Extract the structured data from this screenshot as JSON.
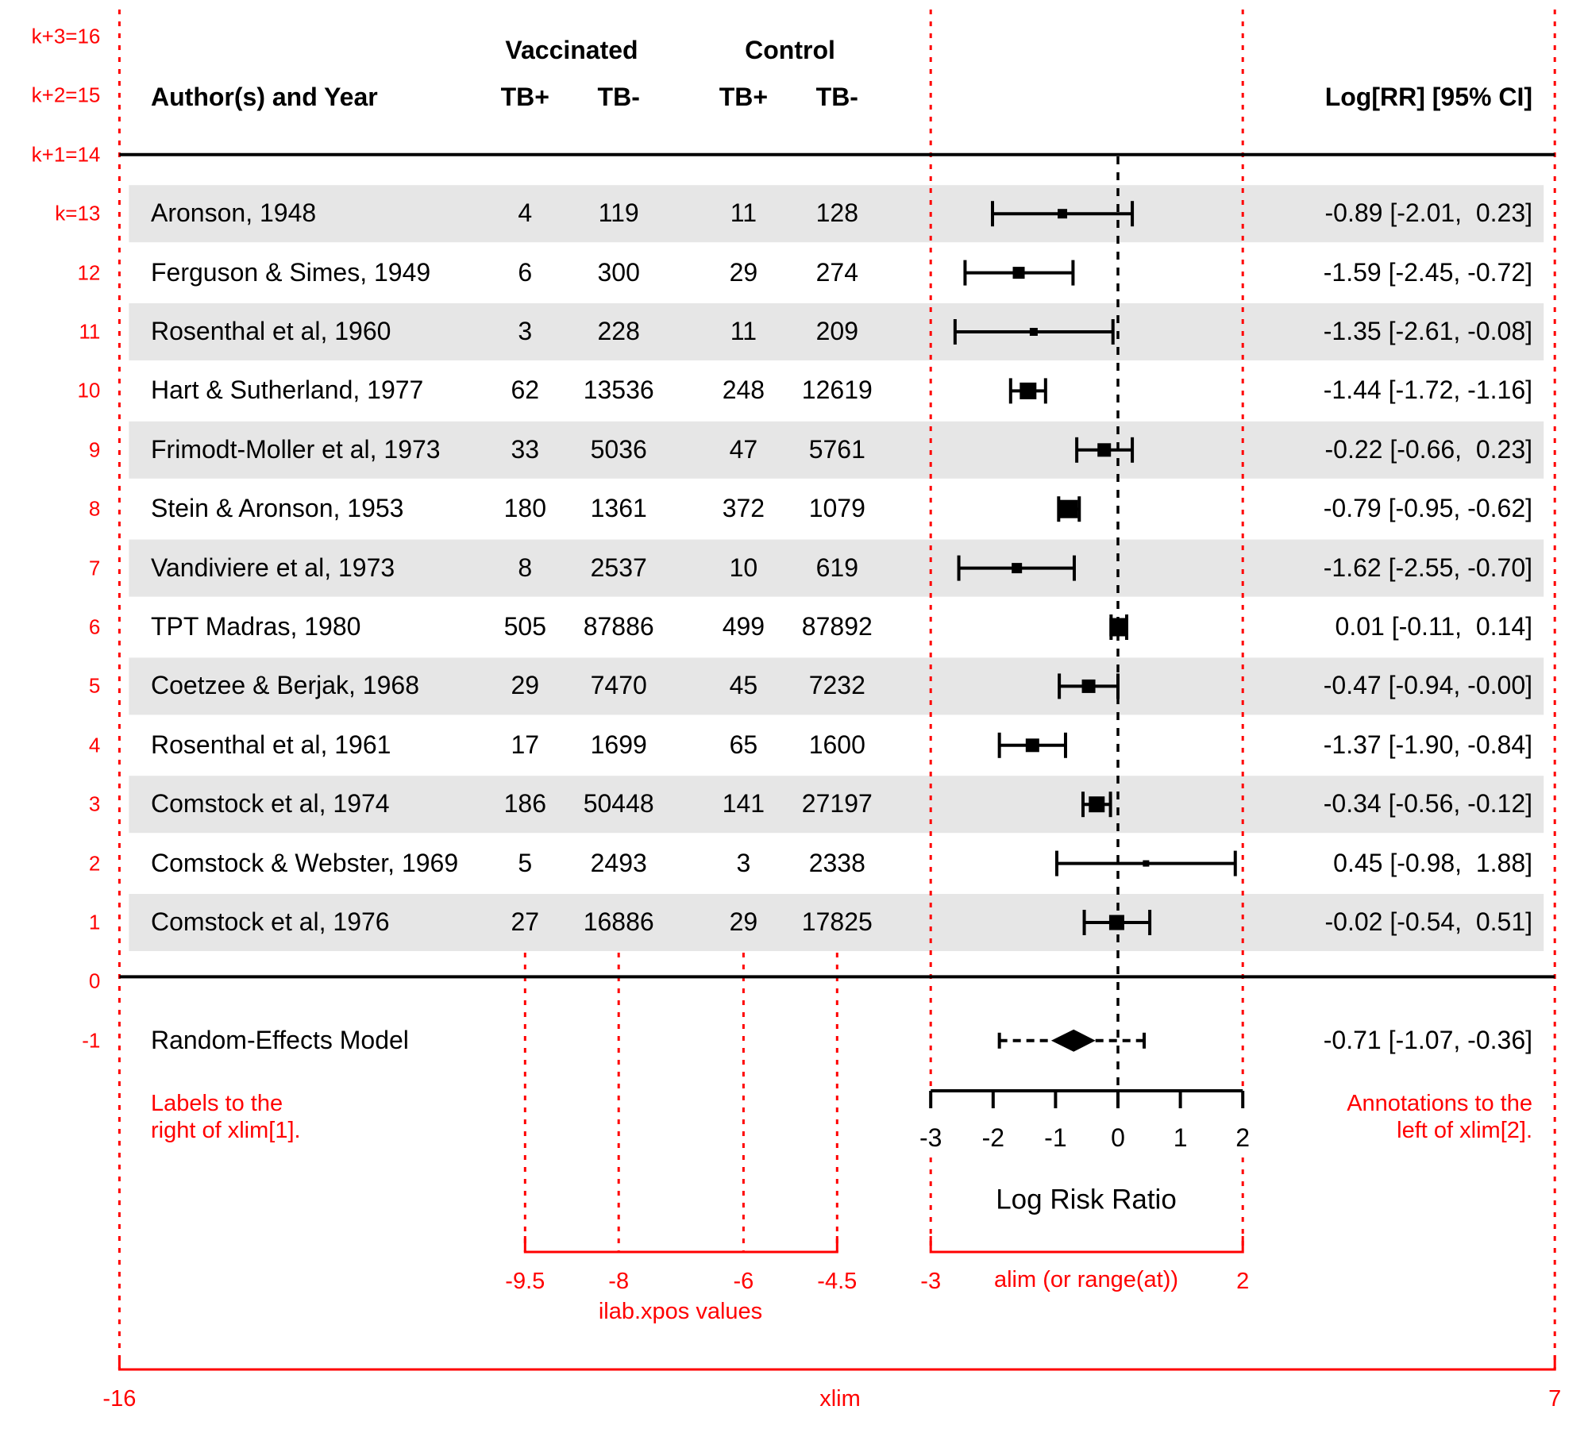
{
  "header": {
    "author_year": "Author(s) and Year",
    "group1": "Vaccinated",
    "group2": "Control",
    "col_labels": [
      "TB+",
      "TB-",
      "TB+",
      "TB-"
    ],
    "annotation_header": "Log[RR] [95% CI]"
  },
  "margin_row_labels": [
    {
      "row": 16,
      "label": "k+3=16"
    },
    {
      "row": 15,
      "label": "k+2=15"
    },
    {
      "row": 14,
      "label": "k+1=14"
    },
    {
      "row": 13,
      "label": "k=13"
    },
    {
      "row": 12,
      "label": "12"
    },
    {
      "row": 11,
      "label": "11"
    },
    {
      "row": 10,
      "label": "10"
    },
    {
      "row": 9,
      "label": "9"
    },
    {
      "row": 8,
      "label": "8"
    },
    {
      "row": 7,
      "label": "7"
    },
    {
      "row": 6,
      "label": "6"
    },
    {
      "row": 5,
      "label": "5"
    },
    {
      "row": 4,
      "label": "4"
    },
    {
      "row": 3,
      "label": "3"
    },
    {
      "row": 2,
      "label": "2"
    },
    {
      "row": 1,
      "label": "1"
    },
    {
      "row": 0,
      "label": "0"
    },
    {
      "row": -1,
      "label": "-1"
    }
  ],
  "chart_data": {
    "type": "forest",
    "xlabel": "Log Risk Ratio",
    "x_ticks": [
      -3,
      -2,
      -1,
      0,
      1,
      2
    ],
    "alim": [
      -3,
      2
    ],
    "xlim": [
      -16,
      7
    ],
    "ilab_xpos": [
      -9.5,
      -8,
      -6,
      -4.5
    ],
    "reference_line": 0,
    "studies": [
      {
        "row": 13,
        "author": "Aronson, 1948",
        "counts": [
          4,
          119,
          11,
          128
        ],
        "estimate": -0.89,
        "ci_lb": -2.01,
        "ci_ub": 0.23,
        "annotation": "-0.89 [-2.01,  0.23]",
        "psize": 12,
        "shaded": true
      },
      {
        "row": 12,
        "author": "Ferguson & Simes, 1949",
        "counts": [
          6,
          300,
          29,
          274
        ],
        "estimate": -1.59,
        "ci_lb": -2.45,
        "ci_ub": -0.72,
        "annotation": "-1.59 [-2.45, -0.72]",
        "psize": 15,
        "shaded": false
      },
      {
        "row": 11,
        "author": "Rosenthal et al, 1960",
        "counts": [
          3,
          228,
          11,
          209
        ],
        "estimate": -1.35,
        "ci_lb": -2.61,
        "ci_ub": -0.08,
        "annotation": "-1.35 [-2.61, -0.08]",
        "psize": 10,
        "shaded": true
      },
      {
        "row": 10,
        "author": "Hart & Sutherland, 1977",
        "counts": [
          62,
          13536,
          248,
          12619
        ],
        "estimate": -1.44,
        "ci_lb": -1.72,
        "ci_ub": -1.16,
        "annotation": "-1.44 [-1.72, -1.16]",
        "psize": 21,
        "shaded": false
      },
      {
        "row": 9,
        "author": "Frimodt-Moller et al, 1973",
        "counts": [
          33,
          5036,
          47,
          5761
        ],
        "estimate": -0.22,
        "ci_lb": -0.66,
        "ci_ub": 0.23,
        "annotation": "-0.22 [-0.66,  0.23]",
        "psize": 17,
        "shaded": true
      },
      {
        "row": 8,
        "author": "Stein & Aronson, 1953",
        "counts": [
          180,
          1361,
          372,
          1079
        ],
        "estimate": -0.79,
        "ci_lb": -0.95,
        "ci_ub": -0.62,
        "annotation": "-0.79 [-0.95, -0.62]",
        "psize": 23,
        "shaded": false
      },
      {
        "row": 7,
        "author": "Vandiviere et al, 1973",
        "counts": [
          8,
          2537,
          10,
          619
        ],
        "estimate": -1.62,
        "ci_lb": -2.55,
        "ci_ub": -0.7,
        "annotation": "-1.62 [-2.55, -0.70]",
        "psize": 13,
        "shaded": true
      },
      {
        "row": 6,
        "author": "TPT Madras, 1980",
        "counts": [
          505,
          87886,
          499,
          87892
        ],
        "estimate": 0.01,
        "ci_lb": -0.11,
        "ci_ub": 0.14,
        "annotation": "0.01 [-0.11,  0.14]",
        "psize": 23,
        "shaded": false
      },
      {
        "row": 5,
        "author": "Coetzee & Berjak, 1968",
        "counts": [
          29,
          7470,
          45,
          7232
        ],
        "estimate": -0.47,
        "ci_lb": -0.94,
        "ci_ub": 0.0,
        "annotation": "-0.47 [-0.94, -0.00]",
        "psize": 17,
        "shaded": true
      },
      {
        "row": 4,
        "author": "Rosenthal et al, 1961",
        "counts": [
          17,
          1699,
          65,
          1600
        ],
        "estimate": -1.37,
        "ci_lb": -1.9,
        "ci_ub": -0.84,
        "annotation": "-1.37 [-1.90, -0.84]",
        "psize": 17,
        "shaded": false
      },
      {
        "row": 3,
        "author": "Comstock et al, 1974",
        "counts": [
          186,
          50448,
          141,
          27197
        ],
        "estimate": -0.34,
        "ci_lb": -0.56,
        "ci_ub": -0.12,
        "annotation": "-0.34 [-0.56, -0.12]",
        "psize": 20,
        "shaded": true
      },
      {
        "row": 2,
        "author": "Comstock & Webster, 1969",
        "counts": [
          5,
          2493,
          3,
          2338
        ],
        "estimate": 0.45,
        "ci_lb": -0.98,
        "ci_ub": 1.88,
        "annotation": "0.45 [-0.98,  1.88]",
        "psize": 8,
        "shaded": false
      },
      {
        "row": 1,
        "author": "Comstock et al, 1976",
        "counts": [
          27,
          16886,
          29,
          17825
        ],
        "estimate": -0.02,
        "ci_lb": -0.54,
        "ci_ub": 0.51,
        "annotation": "-0.02 [-0.54,  0.51]",
        "psize": 19,
        "shaded": true
      }
    ],
    "summary": {
      "row": -1,
      "label": "Random-Effects Model",
      "estimate": -0.71,
      "ci_lb": -1.07,
      "ci_ub": -0.36,
      "pred_lb": -1.9,
      "pred_ub": 0.42,
      "annotation": "-0.71 [-1.07, -0.36]"
    }
  },
  "red_guides": {
    "note_left_line1": "Labels to the",
    "note_left_line2": "right of xlim[1].",
    "note_right_line1": "Annotations to the",
    "note_right_line2": "left of xlim[2].",
    "ilab_bracket_labels": [
      "-9.5",
      "-8",
      "-6",
      "-4.5"
    ],
    "ilab_bracket_caption": "ilab.xpos values",
    "alim_bracket_labels": [
      "-3",
      "2"
    ],
    "alim_bracket_caption": "alim (or range(at))",
    "xlim_axis_labels": [
      "-16",
      "7"
    ],
    "xlim_axis_caption": "xlim"
  },
  "colors": {
    "guide_red": "#ff0000",
    "band_gray": "#e6e6e6",
    "ink": "#000000"
  }
}
